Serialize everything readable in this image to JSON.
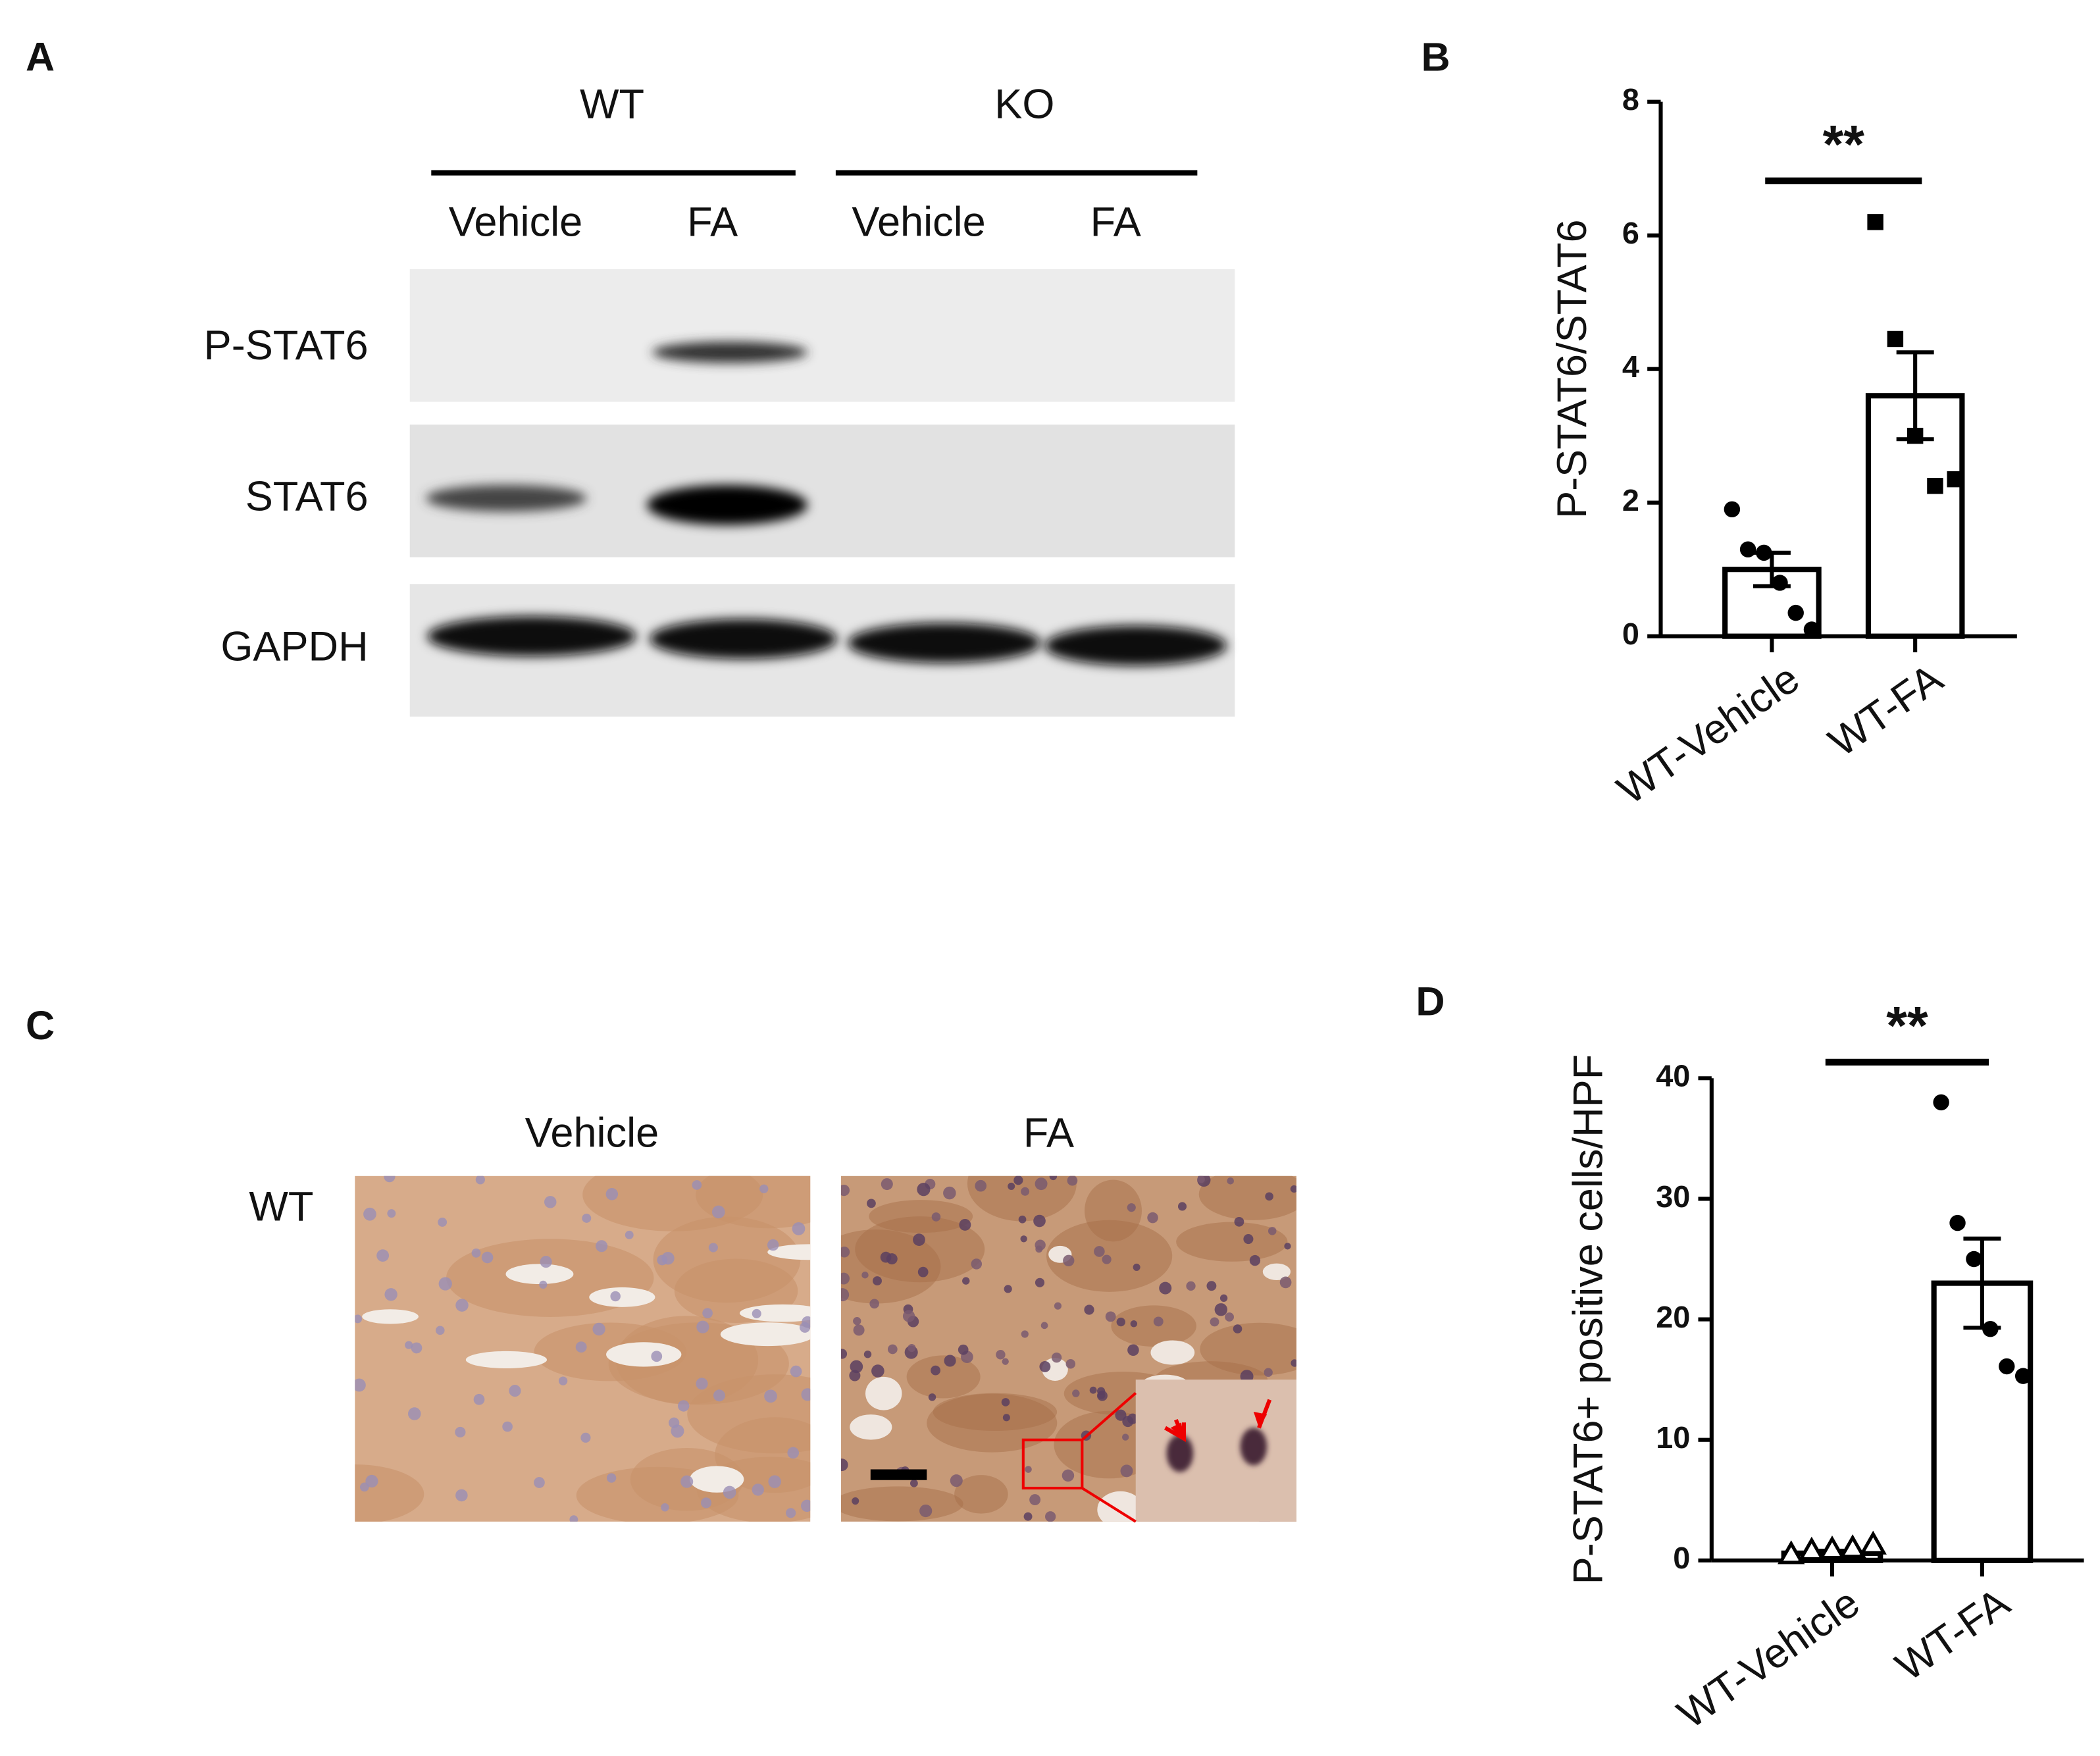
{
  "western_blot": {
    "panel": "A",
    "groups": [
      {
        "name": "WT",
        "lanes": [
          "Vehicle",
          "FA"
        ]
      },
      {
        "name": "KO",
        "lanes": [
          "Vehicle",
          "FA"
        ]
      }
    ],
    "rows": [
      "P-STAT6",
      "STAT6",
      "GAPDH"
    ]
  },
  "histology": {
    "panel": "C",
    "row": "WT",
    "columns": [
      "Vehicle",
      "FA"
    ]
  },
  "chart_data": [
    {
      "type": "bar",
      "panel": "B",
      "ylabel": "P-STAT6/STAT6",
      "categories": [
        "WT-Vehicle",
        "WT-FA"
      ],
      "values": [
        1.0,
        3.6
      ],
      "errors": [
        0.25,
        0.65
      ],
      "points": [
        [
          1.9,
          1.3,
          1.25,
          0.8,
          0.35,
          0.1
        ],
        [
          6.2,
          4.45,
          3.0,
          2.25,
          2.35
        ]
      ],
      "markers": [
        "circle",
        "square"
      ],
      "significance": "**",
      "color": "#000000",
      "ylim": [
        0,
        8
      ],
      "yticks": [
        0,
        2,
        4,
        6,
        8
      ]
    },
    {
      "type": "bar",
      "panel": "D",
      "ylabel": "P-STAT6+ positive cells/HPF",
      "categories": [
        "WT-Vehicle",
        "WT-FA"
      ],
      "values": [
        0.6,
        23.0
      ],
      "errors": [
        0.2,
        3.7
      ],
      "points": [
        [
          0.5,
          0.8,
          0.9,
          1.0,
          1.3
        ],
        [
          38,
          28,
          25,
          19.2,
          16.1,
          15.3
        ]
      ],
      "markers": [
        "triangle",
        "circle"
      ],
      "significance": "**",
      "color": "#000000",
      "ylim": [
        0,
        40
      ],
      "yticks": [
        0,
        10,
        20,
        30,
        40
      ]
    }
  ]
}
